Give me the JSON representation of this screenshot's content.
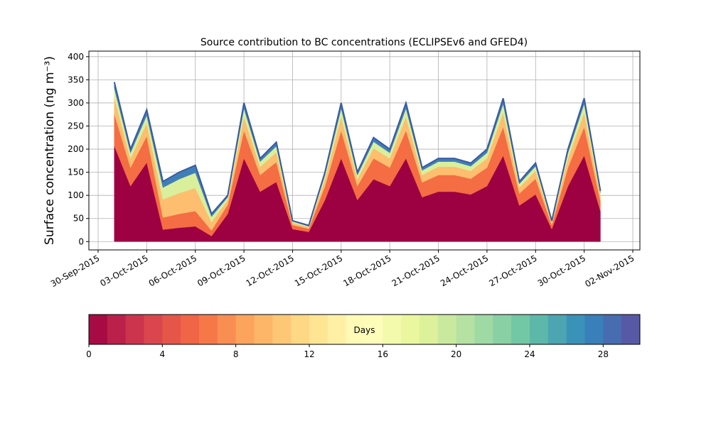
{
  "chart_data": {
    "type": "stackedarea",
    "title": "Source contribution to BC concentrations (ECLIPSEv6 and GFED4)",
    "ylabel": "Surface concentration (ng m⁻³)",
    "x": [
      "01-Oct-2015",
      "02-Oct-2015",
      "03-Oct-2015",
      "04-Oct-2015",
      "05-Oct-2015",
      "06-Oct-2015",
      "07-Oct-2015",
      "08-Oct-2015",
      "09-Oct-2015",
      "10-Oct-2015",
      "11-Oct-2015",
      "12-Oct-2015",
      "13-Oct-2015",
      "14-Oct-2015",
      "15-Oct-2015",
      "16-Oct-2015",
      "17-Oct-2015",
      "18-Oct-2015",
      "19-Oct-2015",
      "20-Oct-2015",
      "21-Oct-2015",
      "22-Oct-2015",
      "23-Oct-2015",
      "24-Oct-2015",
      "25-Oct-2015",
      "26-Oct-2015",
      "27-Oct-2015",
      "28-Oct-2015",
      "29-Oct-2015",
      "30-Oct-2015",
      "31-Oct-2015"
    ],
    "series": [
      {
        "color": "#9e0142",
        "values": [
          207,
          120,
          171,
          26,
          30,
          33,
          12,
          60,
          180,
          108,
          129,
          27,
          21,
          90,
          180,
          90,
          135,
          120,
          180,
          96,
          108,
          108,
          102,
          120,
          186,
          78,
          102,
          27,
          120,
          186,
          66
        ]
      },
      {
        "color": "#f46d43",
        "values": [
          69,
          40,
          57,
          26,
          30,
          33,
          12,
          20,
          60,
          36,
          43,
          9,
          7,
          30,
          60,
          30,
          45,
          40,
          60,
          32,
          36,
          36,
          34,
          40,
          62,
          26,
          34,
          9,
          40,
          62,
          22
        ]
      },
      {
        "color": "#fdbe6f",
        "values": [
          35,
          20,
          28,
          39,
          45,
          50,
          18,
          10,
          30,
          18,
          21,
          5,
          3,
          15,
          30,
          15,
          22,
          20,
          30,
          16,
          18,
          18,
          17,
          20,
          31,
          13,
          17,
          5,
          20,
          31,
          11
        ]
      },
      {
        "color": "#d9ef9b",
        "values": [
          21,
          12,
          17,
          26,
          30,
          33,
          12,
          6,
          18,
          11,
          13,
          3,
          2,
          9,
          18,
          9,
          14,
          12,
          18,
          10,
          11,
          11,
          10,
          12,
          19,
          8,
          10,
          3,
          12,
          19,
          7
        ]
      },
      {
        "color": "#3f7fb8",
        "values": [
          13,
          8,
          12,
          13,
          15,
          16,
          6,
          4,
          12,
          7,
          9,
          1,
          2,
          6,
          12,
          6,
          9,
          8,
          12,
          6,
          7,
          7,
          7,
          8,
          12,
          5,
          7,
          1,
          8,
          12,
          4
        ]
      }
    ],
    "xlim": [
      "30-Sep-2015",
      "02-Nov-2015"
    ],
    "xticks": [
      "30-Sep-2015",
      "03-Oct-2015",
      "06-Oct-2015",
      "09-Oct-2015",
      "12-Oct-2015",
      "15-Oct-2015",
      "18-Oct-2015",
      "21-Oct-2015",
      "24-Oct-2015",
      "27-Oct-2015",
      "30-Oct-2015",
      "02-Nov-2015"
    ],
    "ylim": [
      -18,
      412
    ],
    "yticks": [
      0,
      50,
      100,
      150,
      200,
      250,
      300,
      350,
      400
    ],
    "grid": true,
    "colorbar": {
      "label": "Days",
      "lim": [
        0,
        30
      ],
      "ticks": [
        0,
        4,
        8,
        12,
        16,
        20,
        24,
        28
      ],
      "colormap": [
        "#9e0142",
        "#d53e4f",
        "#f46d43",
        "#fdae61",
        "#fee08b",
        "#ffffbf",
        "#e6f598",
        "#abdda4",
        "#66c2a5",
        "#3288bd",
        "#5e4fa2"
      ],
      "n_colors": 30
    }
  }
}
